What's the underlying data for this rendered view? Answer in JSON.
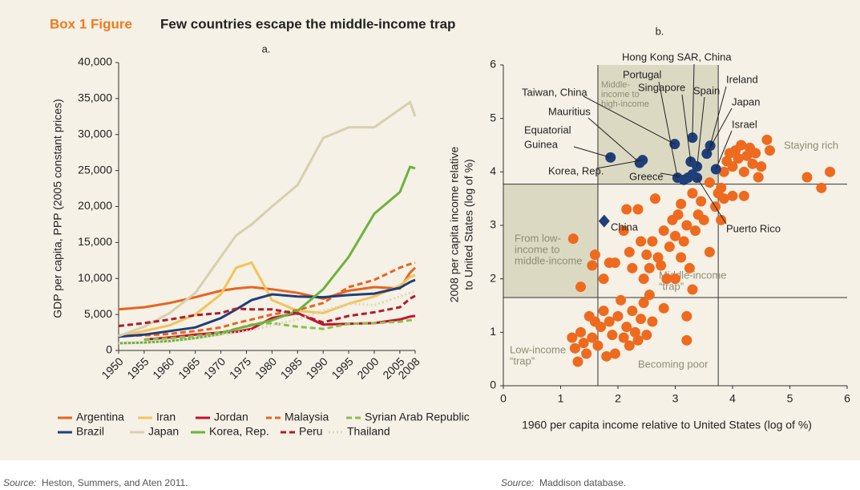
{
  "header": {
    "label": "Box 1 Figure",
    "title": "Few countries escape the middle-income trap"
  },
  "chart_data": [
    {
      "type": "line",
      "subtitle": "a.",
      "y_label": "GDP per capita, PPP (2005 constant prices)",
      "x": [
        1950,
        1955,
        1960,
        1965,
        1970,
        1973,
        1976,
        1980,
        1985,
        1990,
        1995,
        2000,
        2005,
        2007,
        2008
      ],
      "xlim": [
        1950,
        2008
      ],
      "xticks": [
        1950,
        1955,
        1960,
        1965,
        1970,
        1975,
        1980,
        1985,
        1990,
        1995,
        2000,
        2005,
        2008
      ],
      "ylim": [
        0,
        40000
      ],
      "yticks": [
        0,
        {
          "value": 5000,
          "label": "5,000"
        },
        {
          "value": 10000,
          "label": "10,000"
        },
        {
          "value": 15000,
          "label": "15,000"
        },
        {
          "value": 20000,
          "label": "20,000"
        },
        {
          "value": 25000,
          "label": "25,000"
        },
        {
          "value": 30000,
          "label": "30,000"
        },
        {
          "value": 35000,
          "label": "35,000"
        },
        {
          "value": 40000,
          "label": "40,000"
        }
      ],
      "series": [
        {
          "name": "Argentina",
          "color": "#e8641e",
          "dash": "solid",
          "values": [
            5700,
            6000,
            6600,
            7400,
            8300,
            8600,
            8800,
            8500,
            8000,
            7200,
            8300,
            8800,
            8600,
            10800,
            11500
          ]
        },
        {
          "name": "Iran",
          "color": "#f5c25a",
          "dash": "solid",
          "values": [
            2000,
            2700,
            3500,
            5000,
            7800,
            11500,
            12200,
            7000,
            5500,
            5200,
            6500,
            7500,
            9000,
            10200,
            10500
          ]
        },
        {
          "name": "Jordan",
          "color": "#c8102e",
          "dash": "solid",
          "values": [
            null,
            1500,
            1800,
            2200,
            2500,
            2600,
            3000,
            4500,
            5200,
            3600,
            3700,
            3800,
            4300,
            4700,
            4800
          ]
        },
        {
          "name": "Malaysia",
          "color": "#e8641e",
          "dash": "dashed",
          "values": [
            2000,
            2100,
            2300,
            2700,
            3200,
            3800,
            4300,
            5000,
            5600,
            6600,
            8800,
            9800,
            11500,
            12000,
            12200
          ]
        },
        {
          "name": "Syrian Arab Republic",
          "color": "#8bbf4b",
          "dash": "dashed",
          "values": [
            null,
            1500,
            1700,
            2000,
            2500,
            3000,
            3600,
            3800,
            3300,
            3000,
            3700,
            3800,
            4000,
            4200,
            4300
          ]
        },
        {
          "name": "Brazil",
          "color": "#1f3f7a",
          "dash": "solid",
          "values": [
            1900,
            2200,
            2700,
            3200,
            4500,
            5700,
            7000,
            7800,
            7500,
            7400,
            7700,
            7900,
            8700,
            9500,
            9800
          ]
        },
        {
          "name": "Japan",
          "color": "#d6d0b0",
          "dash": "solid",
          "values": [
            2000,
            3300,
            5200,
            8000,
            13000,
            16000,
            17500,
            20000,
            23000,
            29500,
            31000,
            31000,
            33500,
            34500,
            32500
          ]
        },
        {
          "name": "Korea, Rep.",
          "color": "#6cb33f",
          "dash": "solid",
          "values": [
            1000,
            1100,
            1300,
            1700,
            2300,
            3000,
            3500,
            4200,
            5500,
            8500,
            13000,
            19000,
            22000,
            25500,
            25300
          ]
        },
        {
          "name": "Peru",
          "color": "#b01c2e",
          "dash": "dashed",
          "values": [
            3400,
            3800,
            4300,
            4900,
            5200,
            5800,
            5700,
            5700,
            5100,
            3900,
            4800,
            5300,
            6000,
            7200,
            7600
          ]
        },
        {
          "name": "Thailand",
          "color": "#ddd6bb",
          "dash": "dotted",
          "values": [
            1000,
            1100,
            1300,
            1700,
            2200,
            2500,
            2800,
            3500,
            4300,
            5500,
            6500,
            6300,
            7500,
            8000,
            8200
          ]
        }
      ]
    },
    {
      "type": "scatter",
      "subtitle": "b.",
      "x_label": "1960 per capita income relative to United States (log of %)",
      "y_label": [
        "2008 per capita income relative",
        "to United States (log of %)"
      ],
      "xlim": [
        0,
        6
      ],
      "xticks": [
        0,
        1,
        2,
        3,
        4,
        5,
        6
      ],
      "ylim": [
        0,
        6
      ],
      "yticks": [
        0,
        1,
        2,
        3,
        4,
        5,
        6
      ],
      "reference_lines": {
        "x": [
          1.65,
          3.75
        ],
        "y": [
          1.65,
          3.77
        ]
      },
      "regions": {
        "middle_to_high": [
          "Middle-",
          "income to",
          "high-income"
        ],
        "low_to_middle": [
          "From low-",
          "income to",
          "middle-income"
        ],
        "middle_trap": [
          "Middle-income",
          "“trap”"
        ],
        "staying_rich": [
          "Staying rich"
        ],
        "low_trap": [
          "Low-income",
          "“trap”"
        ],
        "becoming_poor": [
          "Becoming poor"
        ]
      },
      "series": [
        {
          "color": "#ee6a1f",
          "marker": "circle",
          "x": [
            1.2,
            1.25,
            1.3,
            1.35,
            1.4,
            1.45,
            1.5,
            1.55,
            1.6,
            1.65,
            1.7,
            1.75,
            1.8,
            1.85,
            1.9,
            1.95,
            2.0,
            2.05,
            2.1,
            2.15,
            2.2,
            2.25,
            2.3,
            2.35,
            2.4,
            2.45,
            2.5,
            2.55,
            2.6,
            2.8,
            3.2,
            3.2,
            1.22,
            1.35,
            1.55,
            1.6,
            1.75,
            1.85,
            1.95,
            2.1,
            2.15,
            2.2,
            2.25,
            2.35,
            2.4,
            2.45,
            2.5,
            2.55,
            2.6,
            2.65,
            2.7,
            2.75,
            2.8,
            2.85,
            2.9,
            2.95,
            3.0,
            3.05,
            3.1,
            3.1,
            3.15,
            3.2,
            3.25,
            3.3,
            3.35,
            3.4,
            3.45,
            3.5,
            3.6,
            3.7,
            3.75,
            3.8,
            3.85,
            3.6,
            3.8,
            4.0,
            4.2,
            3.3,
            3.0,
            3.85,
            3.9,
            3.95,
            4.0,
            4.05,
            4.1,
            4.15,
            4.2,
            4.25,
            4.3,
            4.35,
            4.4,
            4.45,
            4.5,
            4.6,
            4.65,
            5.3,
            5.55,
            5.7
          ],
          "values": [
            0.9,
            0.7,
            0.45,
            1.0,
            0.8,
            0.6,
            1.3,
            0.9,
            1.2,
            0.75,
            1.1,
            1.4,
            0.55,
            1.2,
            0.95,
            0.6,
            1.3,
            1.6,
            0.9,
            1.1,
            0.75,
            1.4,
            1.0,
            0.85,
            1.25,
            1.55,
            0.95,
            1.7,
            1.2,
            1.45,
            0.85,
            1.3,
            2.75,
            1.85,
            2.25,
            2.45,
            2.0,
            2.3,
            2.3,
            2.9,
            3.3,
            2.5,
            2.2,
            3.3,
            2.7,
            2.0,
            2.45,
            2.2,
            2.7,
            3.5,
            2.4,
            2.25,
            2.9,
            2.0,
            2.6,
            3.1,
            2.8,
            3.2,
            2.4,
            3.4,
            2.7,
            3.0,
            2.2,
            3.6,
            2.9,
            3.2,
            3.45,
            3.1,
            2.5,
            3.35,
            3.6,
            3.1,
            3.5,
            3.8,
            3.7,
            3.55,
            3.55,
            1.8,
            2.0,
            4.0,
            4.2,
            4.35,
            4.1,
            4.4,
            4.25,
            4.5,
            4.0,
            4.3,
            4.45,
            4.15,
            4.35,
            3.9,
            4.1,
            4.6,
            4.4,
            3.9,
            3.7,
            4.0
          ]
        },
        {
          "color": "#1f3f7a",
          "marker": "circle",
          "x": [
            1.87,
            2.38,
            2.43,
            2.99,
            3.3,
            3.04,
            3.27,
            3.38,
            3.61,
            3.55,
            3.71,
            3.22,
            3.38,
            3.3,
            3.15
          ],
          "values": [
            4.27,
            4.17,
            4.22,
            4.52,
            4.64,
            3.89,
            4.19,
            4.1,
            4.49,
            4.34,
            4.05,
            3.89,
            3.89,
            3.95,
            3.85
          ],
          "labels": [
            [
              "Equatorial",
              "Guinea"
            ],
            "Mauritius",
            "Korea, Rep.",
            "Taiwan, China",
            "Hong Kong SAR, China",
            "Portugal",
            "Singapore",
            "Spain",
            "Ireland",
            "Japan",
            "Israel",
            "Greece",
            "Puerto Rico",
            null,
            null
          ]
        },
        {
          "color": "#1f3f7a",
          "marker": "diamond",
          "x": [
            1.76
          ],
          "values": [
            3.08
          ],
          "labels": [
            "China"
          ]
        }
      ]
    }
  ],
  "sources": [
    {
      "label": "Source:",
      "text": "Heston, Summers, and Aten 2011."
    },
    {
      "label": "Source:",
      "text": "Maddison database."
    }
  ]
}
